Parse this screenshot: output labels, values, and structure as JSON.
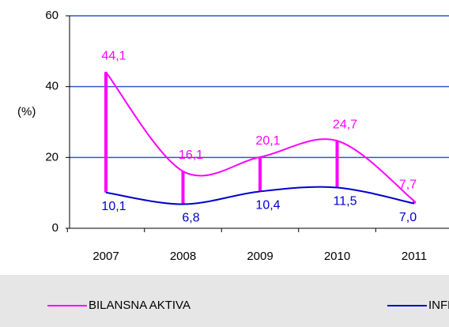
{
  "chart_data": {
    "type": "line",
    "y_label": "(%)",
    "categories": [
      "2007",
      "2008",
      "2009",
      "2010",
      "2011"
    ],
    "series": [
      {
        "name": "BILANSNA AKTIVA",
        "color": "#ff00ff",
        "values": [
          44.1,
          16.1,
          20.1,
          24.7,
          7.7
        ],
        "value_labels": [
          "44,1",
          "16,1",
          "20,1",
          "24,7",
          "7,7"
        ]
      },
      {
        "name": "INFLACIJA",
        "color": "#0000cc",
        "values": [
          10.1,
          6.8,
          10.4,
          11.5,
          7.0
        ],
        "value_labels": [
          "10,1",
          "6,8",
          "10,4",
          "11,5",
          "7,0"
        ]
      }
    ],
    "ylim": [
      0,
      60
    ],
    "yticks": [
      0,
      20,
      40,
      60
    ],
    "grid": true,
    "grid_color": "#3355cc",
    "legend": "bottom"
  }
}
